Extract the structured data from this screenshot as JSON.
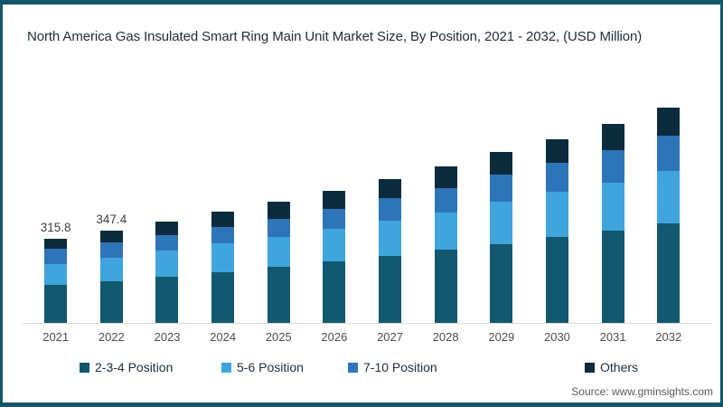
{
  "title": "North America Gas Insulated Smart Ring Main Unit Market Size, By Position, 2021 - 2032, (USD Million)",
  "source": "Source: www.gminsights.com",
  "colors": {
    "position_234": "#12586E",
    "position_56": "#3FA5DC",
    "position_710": "#2E74B8",
    "others": "#0C2B3D",
    "frame_border": "#16566B",
    "axis_line": "#d9d9d9"
  },
  "chart_data": {
    "type": "bar",
    "stacked": true,
    "title": "North America Gas Insulated Smart Ring Main Unit Market Size, By Position, 2021 - 2032, (USD Million)",
    "xlabel": "",
    "ylabel": "USD Million",
    "grid": false,
    "legend_position": "bottom",
    "categories": [
      "2021",
      "2022",
      "2023",
      "2024",
      "2025",
      "2026",
      "2027",
      "2028",
      "2029",
      "2030",
      "2031",
      "2032"
    ],
    "series": [
      {
        "name": "2-3-4 Position",
        "color": "#12586E",
        "values": [
          142.5,
          158.0,
          175.0,
          192.0,
          210.5,
          230.0,
          251.0,
          274.0,
          297.5,
          322.0,
          348.0,
          375.0
        ]
      },
      {
        "name": "5-6 Position",
        "color": "#3FA5DC",
        "values": [
          78.0,
          87.0,
          96.0,
          106.0,
          112.0,
          123.5,
          135.0,
          140.0,
          158.0,
          172.0,
          180.0,
          198.0
        ]
      },
      {
        "name": "7-10 Position",
        "color": "#2E74B8",
        "values": [
          57.5,
          56.4,
          59.0,
          62.0,
          68.0,
          76.0,
          84.0,
          93.0,
          102.5,
          110.0,
          122.0,
          133.0
        ]
      },
      {
        "name": "Others",
        "color": "#0C2B3D",
        "values": [
          37.8,
          46.0,
          51.0,
          58.0,
          65.5,
          68.5,
          71.0,
          81.0,
          85.0,
          88.0,
          98.0,
          104.0
        ]
      }
    ],
    "totals_estimated": [
      315.8,
      347.4,
      381.0,
      418.0,
      456.0,
      498.0,
      541.0,
      588.0,
      643.0,
      692.0,
      748.0,
      810.0
    ],
    "data_labels": {
      "2021": "315.8",
      "2022": "347.4"
    }
  }
}
